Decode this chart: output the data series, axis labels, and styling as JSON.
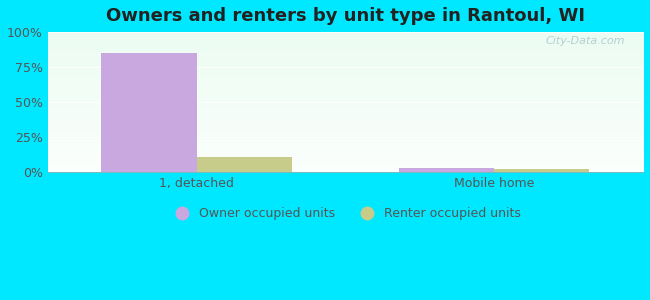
{
  "title": "Owners and renters by unit type in Rantoul, WI",
  "categories": [
    "1, detached",
    "Mobile home"
  ],
  "owner_values": [
    85,
    3
  ],
  "renter_values": [
    11,
    2
  ],
  "owner_color": "#c9a8e0",
  "renter_color": "#c8cc8a",
  "bar_width": 0.32,
  "ylim": [
    0,
    100
  ],
  "yticks": [
    0,
    25,
    50,
    75,
    100
  ],
  "yticklabels": [
    "0%",
    "25%",
    "50%",
    "75%",
    "100%"
  ],
  "legend_owner": "Owner occupied units",
  "legend_renter": "Renter occupied units",
  "bg_outer": "#00e8ff",
  "title_fontsize": 13,
  "tick_fontsize": 9,
  "legend_fontsize": 9,
  "watermark": "City-Data.com",
  "grid_color": "#d0ddd0",
  "tick_color": "#555555",
  "title_color": "#222222"
}
